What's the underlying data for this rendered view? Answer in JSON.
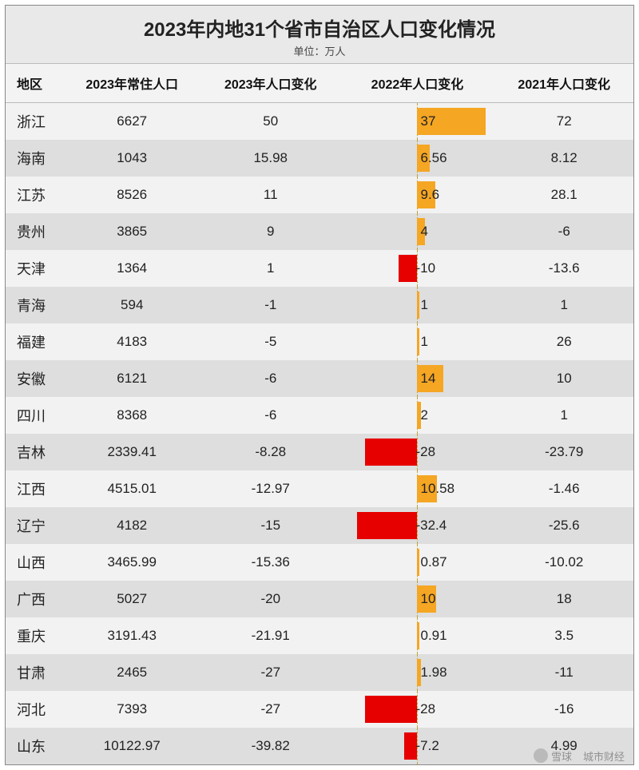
{
  "title": "2023年内地31个省市自治区人口变化情况",
  "subtitle": "单位：万人",
  "columns": [
    "地区",
    "2023年常住人口",
    "2023年人口变化",
    "2022年人口变化",
    "2021年人口变化"
  ],
  "bar_column_index": 3,
  "bar_max_abs": 40,
  "bar_positive_color": "#f5a623",
  "bar_negative_color": "#e60000",
  "row_even_bg": "#f2f2f2",
  "row_odd_bg": "#dedede",
  "header_bg": "#f3f3f3",
  "axis_dash_color": "#bfa23a",
  "title_fontsize": 24,
  "cell_fontsize": 17,
  "header_fontsize": 16,
  "watermark_left": "雪球",
  "watermark_right": "城市财经",
  "rows": [
    {
      "region": "浙江",
      "pop2023": "6627",
      "chg2023": "50",
      "chg2022": 37,
      "chg2021": "72"
    },
    {
      "region": "海南",
      "pop2023": "1043",
      "chg2023": "15.98",
      "chg2022": 6.56,
      "chg2021": "8.12"
    },
    {
      "region": "江苏",
      "pop2023": "8526",
      "chg2023": "11",
      "chg2022": 9.6,
      "chg2021": "28.1"
    },
    {
      "region": "贵州",
      "pop2023": "3865",
      "chg2023": "9",
      "chg2022": 4,
      "chg2021": "-6"
    },
    {
      "region": "天津",
      "pop2023": "1364",
      "chg2023": "1",
      "chg2022": -10,
      "chg2021": "-13.6"
    },
    {
      "region": "青海",
      "pop2023": "594",
      "chg2023": "-1",
      "chg2022": 1,
      "chg2021": "1"
    },
    {
      "region": "福建",
      "pop2023": "4183",
      "chg2023": "-5",
      "chg2022": 1,
      "chg2021": "26"
    },
    {
      "region": "安徽",
      "pop2023": "6121",
      "chg2023": "-6",
      "chg2022": 14,
      "chg2021": "10"
    },
    {
      "region": "四川",
      "pop2023": "8368",
      "chg2023": "-6",
      "chg2022": 2,
      "chg2021": "1"
    },
    {
      "region": "吉林",
      "pop2023": "2339.41",
      "chg2023": "-8.28",
      "chg2022": -28,
      "chg2021": "-23.79"
    },
    {
      "region": "江西",
      "pop2023": "4515.01",
      "chg2023": "-12.97",
      "chg2022": 10.58,
      "chg2021": "-1.46"
    },
    {
      "region": "辽宁",
      "pop2023": "4182",
      "chg2023": "-15",
      "chg2022": -32.4,
      "chg2021": "-25.6"
    },
    {
      "region": "山西",
      "pop2023": "3465.99",
      "chg2023": "-15.36",
      "chg2022": 0.87,
      "chg2021": "-10.02"
    },
    {
      "region": "广西",
      "pop2023": "5027",
      "chg2023": "-20",
      "chg2022": 10,
      "chg2021": "18"
    },
    {
      "region": "重庆",
      "pop2023": "3191.43",
      "chg2023": "-21.91",
      "chg2022": 0.91,
      "chg2021": "3.5"
    },
    {
      "region": "甘肃",
      "pop2023": "2465",
      "chg2023": "-27",
      "chg2022": 1.98,
      "chg2021": "-11"
    },
    {
      "region": "河北",
      "pop2023": "7393",
      "chg2023": "-27",
      "chg2022": -28,
      "chg2021": "-16"
    },
    {
      "region": "山东",
      "pop2023": "10122.97",
      "chg2023": "-39.82",
      "chg2022": -7.2,
      "chg2021": "4.99"
    }
  ]
}
